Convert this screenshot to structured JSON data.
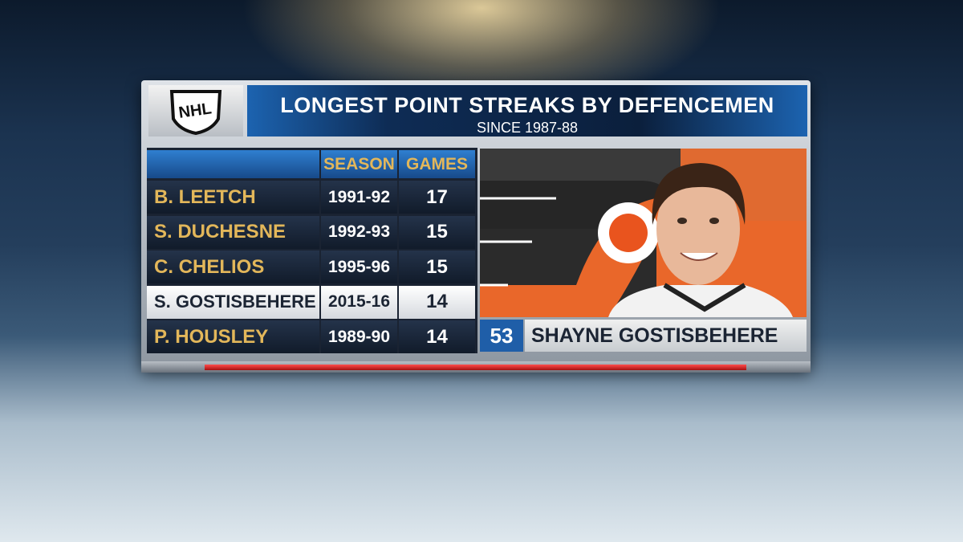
{
  "header": {
    "logo": "NHL",
    "title": "LONGEST POINT STREAKS BY DEFENCEMEN",
    "subtitle": "SINCE 1987-88"
  },
  "table": {
    "columns": [
      "SEASON",
      "GAMES"
    ],
    "rows": [
      [
        "B. LEETCH",
        "1991-92",
        17
      ],
      [
        "S. DUCHESNE",
        "1992-93",
        15
      ],
      [
        "C. CHELIOS",
        "1995-96",
        15
      ],
      [
        "S. GOSTISBEHERE",
        "2015-16",
        14
      ],
      [
        "P. HOUSLEY",
        "1989-90",
        14
      ]
    ],
    "highlight_row": 3
  },
  "player": {
    "number": 53,
    "name": "SHAYNE GOSTISBEHERE"
  }
}
